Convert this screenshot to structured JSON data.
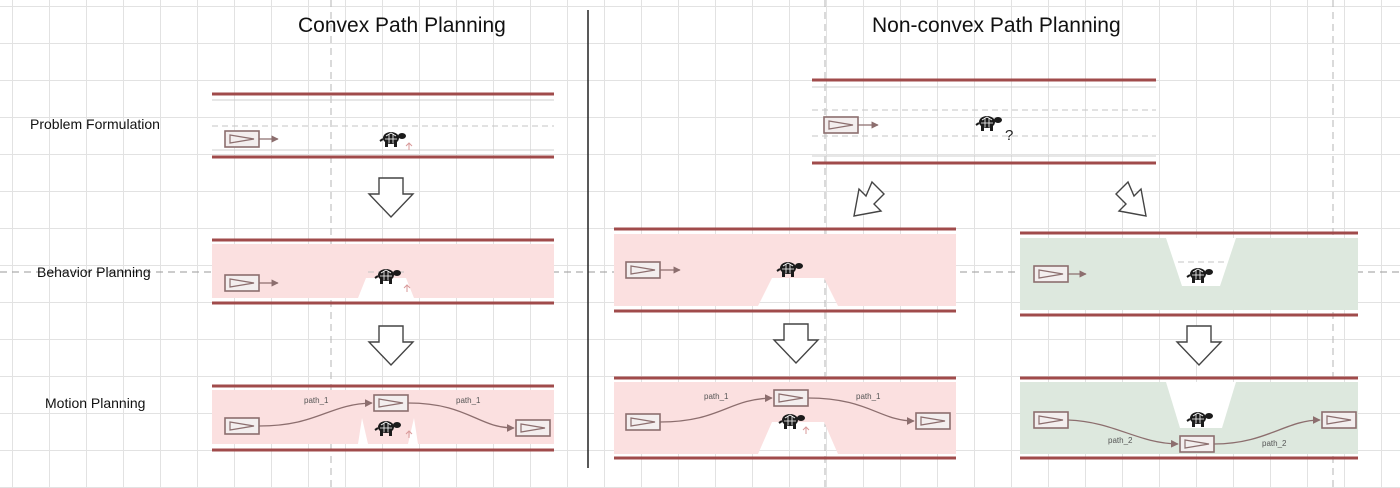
{
  "titles": {
    "convex": "Convex Path Planning",
    "nonconvex": "Non-convex Path Planning"
  },
  "row_labels": {
    "problem": "Problem Formulation",
    "behavior": "Behavior Planning",
    "motion": "Motion Planning"
  },
  "path_labels": {
    "path_1": "path_1",
    "path_2": "path_2"
  },
  "question_mark": "?",
  "colors": {
    "road_line": "#a04b4b",
    "left_region": "#fbe0e0",
    "right_region": "#dde8de",
    "vehicle": "#8c6e6e",
    "arrow_stroke": "#444444"
  }
}
